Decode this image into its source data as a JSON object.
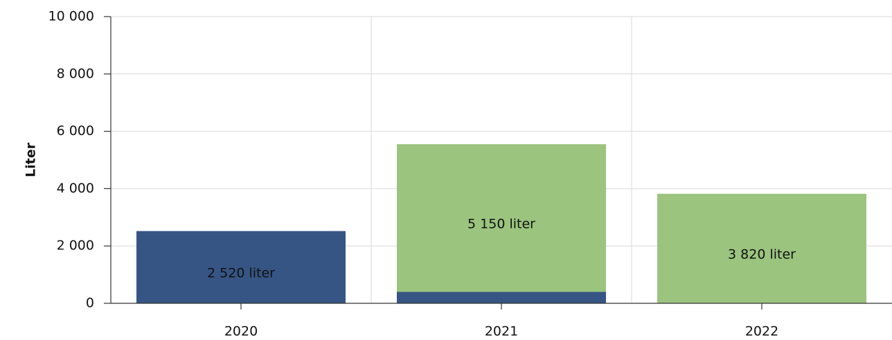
{
  "chart_data": {
    "type": "bar",
    "stacked": true,
    "y_label": "Liter",
    "categories": [
      "2020",
      "2021",
      "2022"
    ],
    "series": [
      {
        "color": "#365584",
        "values": [
          2520,
          400,
          null
        ],
        "value_labels": [
          "2 520 liter",
          null,
          null
        ]
      },
      {
        "color": "#9bc47f",
        "values": [
          null,
          5150,
          3820
        ],
        "value_labels": [
          null,
          "5 150 liter",
          "3 820 liter"
        ]
      }
    ],
    "ylim": [
      0,
      10000
    ],
    "yticks": [
      0,
      {
        "value": 2000,
        "label": "2 000"
      },
      {
        "value": 4000,
        "label": "4 000"
      },
      {
        "value": 6000,
        "label": "6 000"
      },
      {
        "value": 8000,
        "label": "8 000"
      },
      {
        "value": 10000,
        "label": "10 000"
      }
    ],
    "grid": true
  }
}
